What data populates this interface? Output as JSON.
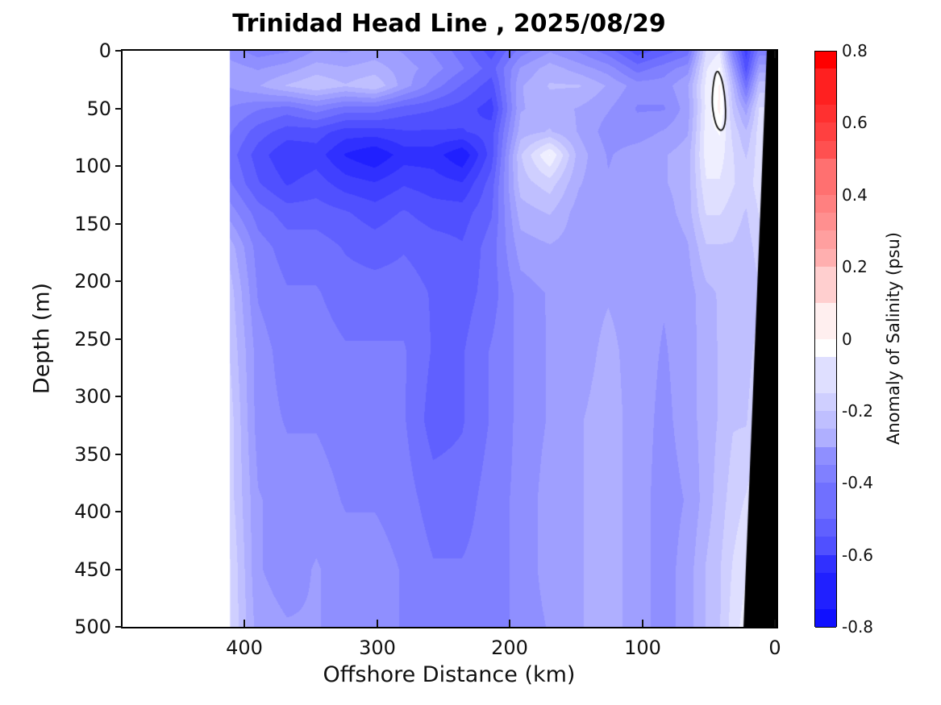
{
  "figure": {
    "title": "Trinidad Head Line , 2025/08/29",
    "background_color": "#ffffff",
    "land_mask_color": "#000000"
  },
  "axes": {
    "xlabel": "Offshore Distance (km)",
    "ylabel": "Depth (m)",
    "x_tick_labels": [
      "400",
      "300",
      "200",
      "100",
      "0"
    ],
    "x_tick_values_km": [
      400,
      300,
      200,
      100,
      0
    ],
    "x_axis_reversed": true,
    "y_tick_labels": [
      "0",
      "50",
      "100",
      "150",
      "200",
      "250",
      "300",
      "350",
      "400",
      "450",
      "500"
    ],
    "y_tick_values_m": [
      0,
      50,
      100,
      150,
      200,
      250,
      300,
      350,
      400,
      450,
      500
    ],
    "y_range_m": [
      0,
      500
    ]
  },
  "colorbar": {
    "label": "Anomaly of Salinity (psu)",
    "tick_labels": [
      "0.8",
      "0.6",
      "0.4",
      "0.2",
      "0",
      "-0.2",
      "-0.4",
      "-0.6",
      "-0.8"
    ],
    "tick_values": [
      0.8,
      0.6,
      0.4,
      0.2,
      0,
      -0.2,
      -0.4,
      -0.6,
      -0.8
    ],
    "min": -0.8,
    "max": 0.8,
    "level_step": 0.05,
    "color_negative_end": "#0000ff",
    "color_zero": "#ffffff",
    "color_positive_end": "#ff0000"
  },
  "chart_data": {
    "type": "heatmap",
    "title": "Trinidad Head Line , 2025/08/29",
    "xlabel": "Offshore Distance (km)",
    "ylabel": "Depth (m)",
    "units": "psu anomaly",
    "data_start_km": 411,
    "x_km": [
      411,
      390,
      368,
      346,
      324,
      302,
      280,
      258,
      236,
      214,
      192,
      170,
      148,
      126,
      104,
      84,
      66,
      52,
      42,
      32,
      22,
      12
    ],
    "depth_m": [
      0,
      15,
      30,
      50,
      70,
      90,
      115,
      140,
      170,
      210,
      260,
      320,
      390,
      450,
      500
    ],
    "anomaly_psu": [
      [
        -0.35,
        -0.4,
        -0.38,
        -0.32,
        -0.33,
        -0.3,
        -0.33,
        -0.38,
        -0.45,
        -0.55,
        -0.4,
        -0.33,
        -0.38,
        -0.45,
        -0.55,
        -0.5,
        -0.45,
        -0.12,
        -0.08,
        -0.4,
        -0.6,
        -0.4
      ],
      [
        -0.3,
        -0.33,
        -0.3,
        -0.25,
        -0.27,
        -0.25,
        -0.3,
        -0.35,
        -0.42,
        -0.5,
        -0.32,
        -0.25,
        -0.3,
        -0.35,
        -0.45,
        -0.4,
        -0.35,
        -0.08,
        -0.02,
        -0.3,
        -0.55,
        -0.3
      ],
      [
        -0.32,
        -0.28,
        -0.22,
        -0.18,
        -0.22,
        -0.18,
        -0.3,
        -0.4,
        -0.48,
        -0.55,
        -0.28,
        -0.22,
        -0.22,
        -0.28,
        -0.35,
        -0.35,
        -0.28,
        -0.06,
        0.03,
        -0.22,
        -0.45,
        -0.2
      ],
      [
        -0.38,
        -0.42,
        -0.45,
        -0.4,
        -0.45,
        -0.45,
        -0.5,
        -0.52,
        -0.55,
        -0.6,
        -0.28,
        -0.25,
        -0.28,
        -0.32,
        -0.38,
        -0.38,
        -0.3,
        -0.06,
        0.04,
        -0.18,
        -0.3,
        -0.12
      ],
      [
        -0.42,
        -0.5,
        -0.55,
        -0.55,
        -0.6,
        -0.6,
        -0.58,
        -0.58,
        -0.58,
        -0.55,
        -0.25,
        -0.22,
        -0.28,
        -0.35,
        -0.35,
        -0.32,
        -0.28,
        -0.05,
        -0.02,
        -0.14,
        -0.22,
        -0.1
      ],
      [
        -0.45,
        -0.55,
        -0.62,
        -0.6,
        -0.68,
        -0.72,
        -0.65,
        -0.65,
        -0.72,
        -0.55,
        -0.18,
        -0.02,
        -0.25,
        -0.33,
        -0.3,
        -0.28,
        -0.25,
        -0.05,
        -0.05,
        -0.12,
        -0.18,
        -0.1
      ],
      [
        -0.42,
        -0.52,
        -0.58,
        -0.55,
        -0.6,
        -0.62,
        -0.58,
        -0.6,
        -0.62,
        -0.5,
        -0.2,
        -0.15,
        -0.27,
        -0.32,
        -0.3,
        -0.28,
        -0.25,
        -0.08,
        -0.08,
        -0.12,
        -0.15,
        -0.1
      ],
      [
        -0.35,
        -0.45,
        -0.5,
        -0.5,
        -0.52,
        -0.55,
        -0.52,
        -0.55,
        -0.55,
        -0.48,
        -0.25,
        -0.22,
        -0.3,
        -0.3,
        -0.28,
        -0.3,
        -0.25,
        -0.12,
        -0.12,
        -0.15,
        -0.18,
        -0.12
      ],
      [
        -0.25,
        -0.4,
        -0.45,
        -0.45,
        -0.48,
        -0.5,
        -0.48,
        -0.5,
        -0.52,
        -0.45,
        -0.3,
        -0.28,
        -0.3,
        -0.3,
        -0.28,
        -0.32,
        -0.28,
        -0.18,
        -0.18,
        -0.18,
        -0.2,
        -0.15
      ],
      [
        -0.2,
        -0.38,
        -0.42,
        -0.42,
        -0.45,
        -0.45,
        -0.45,
        -0.48,
        -0.5,
        -0.45,
        -0.35,
        -0.32,
        -0.3,
        -0.28,
        -0.3,
        -0.32,
        -0.3,
        -0.24,
        -0.22,
        -0.2,
        -0.22,
        -0.18
      ],
      [
        -0.18,
        -0.35,
        -0.4,
        -0.4,
        -0.42,
        -0.42,
        -0.42,
        -0.48,
        -0.48,
        -0.42,
        -0.36,
        -0.32,
        -0.3,
        -0.26,
        -0.3,
        -0.33,
        -0.3,
        -0.25,
        -0.22,
        -0.2,
        -0.2,
        -0.15
      ],
      [
        -0.15,
        -0.35,
        -0.38,
        -0.38,
        -0.4,
        -0.4,
        -0.42,
        -0.5,
        -0.48,
        -0.42,
        -0.36,
        -0.32,
        -0.28,
        -0.25,
        -0.3,
        -0.34,
        -0.3,
        -0.25,
        -0.22,
        -0.18,
        -0.18,
        -0.12
      ],
      [
        -0.15,
        -0.32,
        -0.35,
        -0.35,
        -0.38,
        -0.38,
        -0.4,
        -0.45,
        -0.45,
        -0.4,
        -0.36,
        -0.3,
        -0.28,
        -0.25,
        -0.3,
        -0.35,
        -0.32,
        -0.25,
        -0.2,
        -0.15,
        -0.12,
        -0.08
      ],
      [
        -0.12,
        -0.32,
        -0.35,
        -0.32,
        -0.35,
        -0.35,
        -0.38,
        -0.42,
        -0.42,
        -0.4,
        -0.36,
        -0.3,
        -0.28,
        -0.25,
        -0.3,
        -0.35,
        -0.3,
        -0.22,
        -0.18,
        -0.12,
        -0.08,
        -0.02
      ],
      [
        -0.12,
        -0.3,
        -0.32,
        -0.32,
        -0.35,
        -0.35,
        -0.38,
        -0.4,
        -0.4,
        -0.4,
        -0.36,
        -0.32,
        -0.28,
        -0.25,
        -0.3,
        -0.35,
        -0.3,
        -0.22,
        -0.18,
        -0.1,
        -0.05,
        0.0
      ]
    ],
    "seafloor_land_polygon_km_m": [
      [
        6.1,
        0
      ],
      [
        -1.2,
        0
      ],
      [
        -1.2,
        500
      ],
      [
        23.7,
        500
      ]
    ],
    "zero_contour_polygon_km_m": [
      [
        44,
        16
      ],
      [
        46.5,
        28
      ],
      [
        47.5,
        45
      ],
      [
        46,
        58
      ],
      [
        43.5,
        67
      ],
      [
        40,
        70
      ],
      [
        37.5,
        64
      ],
      [
        37,
        52
      ],
      [
        38,
        36
      ],
      [
        40.5,
        22
      ]
    ]
  }
}
